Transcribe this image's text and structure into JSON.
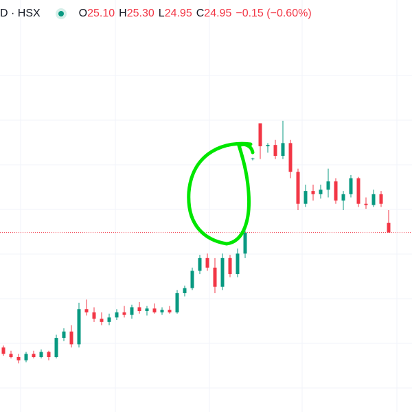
{
  "header": {
    "symbol": "D · HSX",
    "ohlc": [
      {
        "letter": "O",
        "value": "25.10"
      },
      {
        "letter": "H",
        "value": "25.30"
      },
      {
        "letter": "L",
        "value": "24.95"
      },
      {
        "letter": "C",
        "value": "24.95"
      }
    ],
    "change": "−0.15 (−0.60%)"
  },
  "chart_data": {
    "type": "candlestick",
    "up_color": "#089981",
    "down_color": "#f23645",
    "ylim": [
      22.14,
      28.59
    ],
    "open": [
      23.15,
      23.05,
      23.0,
      22.95,
      23.05,
      23.0,
      23.08,
      23.0,
      23.3,
      23.4,
      23.2,
      23.75,
      23.7,
      23.6,
      23.55,
      23.62,
      23.7,
      23.66,
      23.78,
      23.72,
      23.76,
      23.7,
      23.74,
      23.7,
      24.0,
      24.08,
      24.35,
      24.55,
      24.4,
      24.1,
      24.55,
      24.3,
      24.62,
      26.1,
      26.66,
      26.3,
      26.32,
      26.15,
      26.35,
      25.9,
      25.4,
      25.6,
      25.55,
      25.62,
      25.75,
      25.45,
      25.55,
      25.8,
      25.4,
      25.38,
      25.55,
      25.1
    ],
    "high": [
      23.18,
      23.1,
      23.05,
      23.08,
      23.1,
      23.12,
      23.1,
      23.35,
      23.45,
      23.5,
      23.85,
      23.9,
      23.78,
      23.7,
      23.68,
      23.75,
      23.8,
      23.82,
      23.86,
      23.8,
      23.84,
      23.78,
      23.8,
      24.05,
      24.12,
      24.4,
      24.6,
      24.62,
      24.55,
      24.62,
      24.6,
      24.7,
      25.1,
      26.12,
      26.66,
      26.35,
      26.4,
      26.7,
      26.4,
      25.95,
      25.7,
      25.7,
      25.7,
      25.95,
      25.8,
      25.6,
      25.85,
      25.82,
      25.5,
      25.62,
      25.6,
      25.3
    ],
    "low": [
      23.02,
      22.98,
      22.9,
      22.92,
      22.98,
      22.98,
      22.95,
      22.98,
      23.25,
      23.15,
      23.15,
      23.65,
      23.55,
      23.5,
      23.5,
      23.58,
      23.62,
      23.6,
      23.68,
      23.65,
      23.68,
      23.66,
      23.68,
      23.68,
      23.95,
      24.05,
      24.3,
      24.35,
      24.0,
      24.05,
      24.25,
      24.25,
      24.55,
      26.08,
      26.1,
      26.2,
      26.1,
      26.1,
      25.8,
      25.3,
      25.35,
      25.45,
      25.48,
      25.5,
      25.4,
      25.3,
      25.5,
      25.35,
      25.32,
      25.35,
      25.35,
      24.95
    ],
    "close": [
      23.05,
      23.0,
      22.95,
      23.05,
      23.0,
      23.08,
      23.0,
      23.3,
      23.4,
      23.2,
      23.75,
      23.7,
      23.6,
      23.55,
      23.62,
      23.7,
      23.66,
      23.78,
      23.72,
      23.76,
      23.7,
      23.74,
      23.7,
      24.0,
      24.08,
      24.35,
      24.55,
      24.4,
      24.1,
      24.55,
      24.3,
      24.62,
      24.95,
      26.11,
      26.3,
      26.32,
      26.15,
      26.35,
      25.9,
      25.4,
      25.6,
      25.55,
      25.62,
      25.75,
      25.45,
      25.55,
      25.8,
      25.4,
      25.38,
      25.55,
      25.4,
      24.95
    ]
  }
}
